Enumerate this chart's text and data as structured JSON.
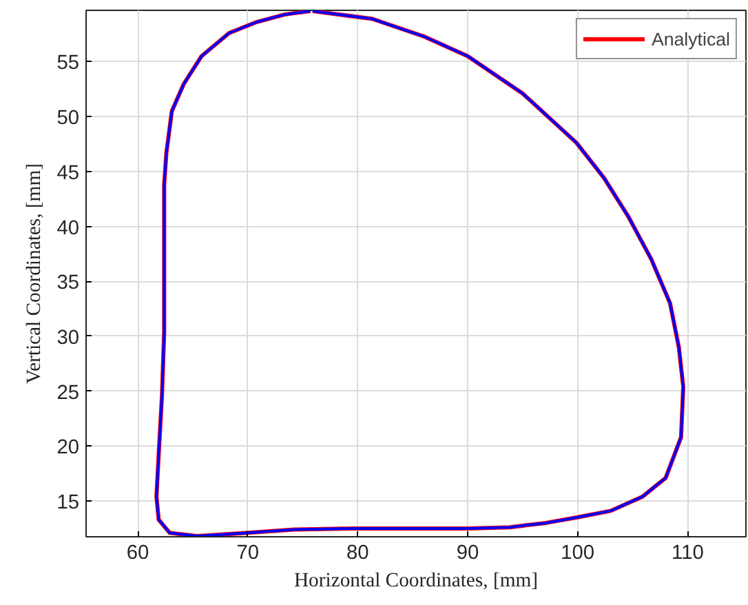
{
  "chart_data": {
    "type": "line",
    "xlabel": "Horizontal Coordinates, [mm]",
    "ylabel": "Vertical Coordinates, [mm]",
    "xlim": [
      55.3,
      115.3
    ],
    "ylim": [
      11.74,
      59.67
    ],
    "xticks": [
      60,
      70,
      80,
      90,
      100,
      110
    ],
    "yticks": [
      15,
      20,
      25,
      30,
      35,
      40,
      45,
      50,
      55
    ],
    "grid": true,
    "legend": "top right",
    "line_style": "solid",
    "marker": "none",
    "x": [
      75.9,
      81.3,
      86.0,
      90.0,
      95.0,
      99.9,
      102.4,
      104.6,
      106.7,
      108.4,
      109.2,
      109.6,
      109.4,
      108.0,
      105.9,
      103.0,
      99.9,
      97.1,
      93.8,
      90.0,
      80.0,
      74.2,
      70.0,
      65.4,
      62.9,
      61.9,
      61.7,
      61.9,
      62.2,
      62.4,
      62.4,
      62.4,
      62.6,
      63.1,
      64.2,
      65.8,
      68.3,
      70.8,
      73.4,
      75.7
    ],
    "series": [
      {
        "name": "Analytical",
        "color": "#ff0000",
        "values": [
          59.6,
          58.9,
          57.3,
          55.5,
          52.1,
          47.6,
          44.4,
          40.9,
          37.0,
          33.0,
          29.0,
          25.4,
          20.8,
          17.1,
          15.4,
          14.1,
          13.5,
          13.0,
          12.6,
          12.5,
          12.5,
          12.4,
          12.1,
          11.8,
          12.1,
          13.3,
          15.4,
          19.2,
          24.6,
          30.4,
          32.9,
          43.8,
          46.7,
          50.5,
          53.0,
          55.5,
          57.6,
          58.6,
          59.3,
          59.6
        ]
      },
      {
        "color": "#0000ff",
        "values": [
          59.6,
          58.9,
          57.3,
          55.5,
          52.1,
          47.6,
          44.4,
          40.9,
          37.0,
          33.0,
          29.0,
          25.4,
          20.8,
          17.1,
          15.4,
          14.1,
          13.5,
          13.0,
          12.6,
          12.5,
          12.5,
          12.4,
          12.1,
          11.8,
          12.1,
          13.3,
          15.4,
          19.2,
          24.6,
          30.4,
          32.9,
          43.8,
          46.7,
          50.5,
          53.0,
          55.5,
          57.6,
          58.6,
          59.3,
          59.6
        ]
      }
    ]
  }
}
